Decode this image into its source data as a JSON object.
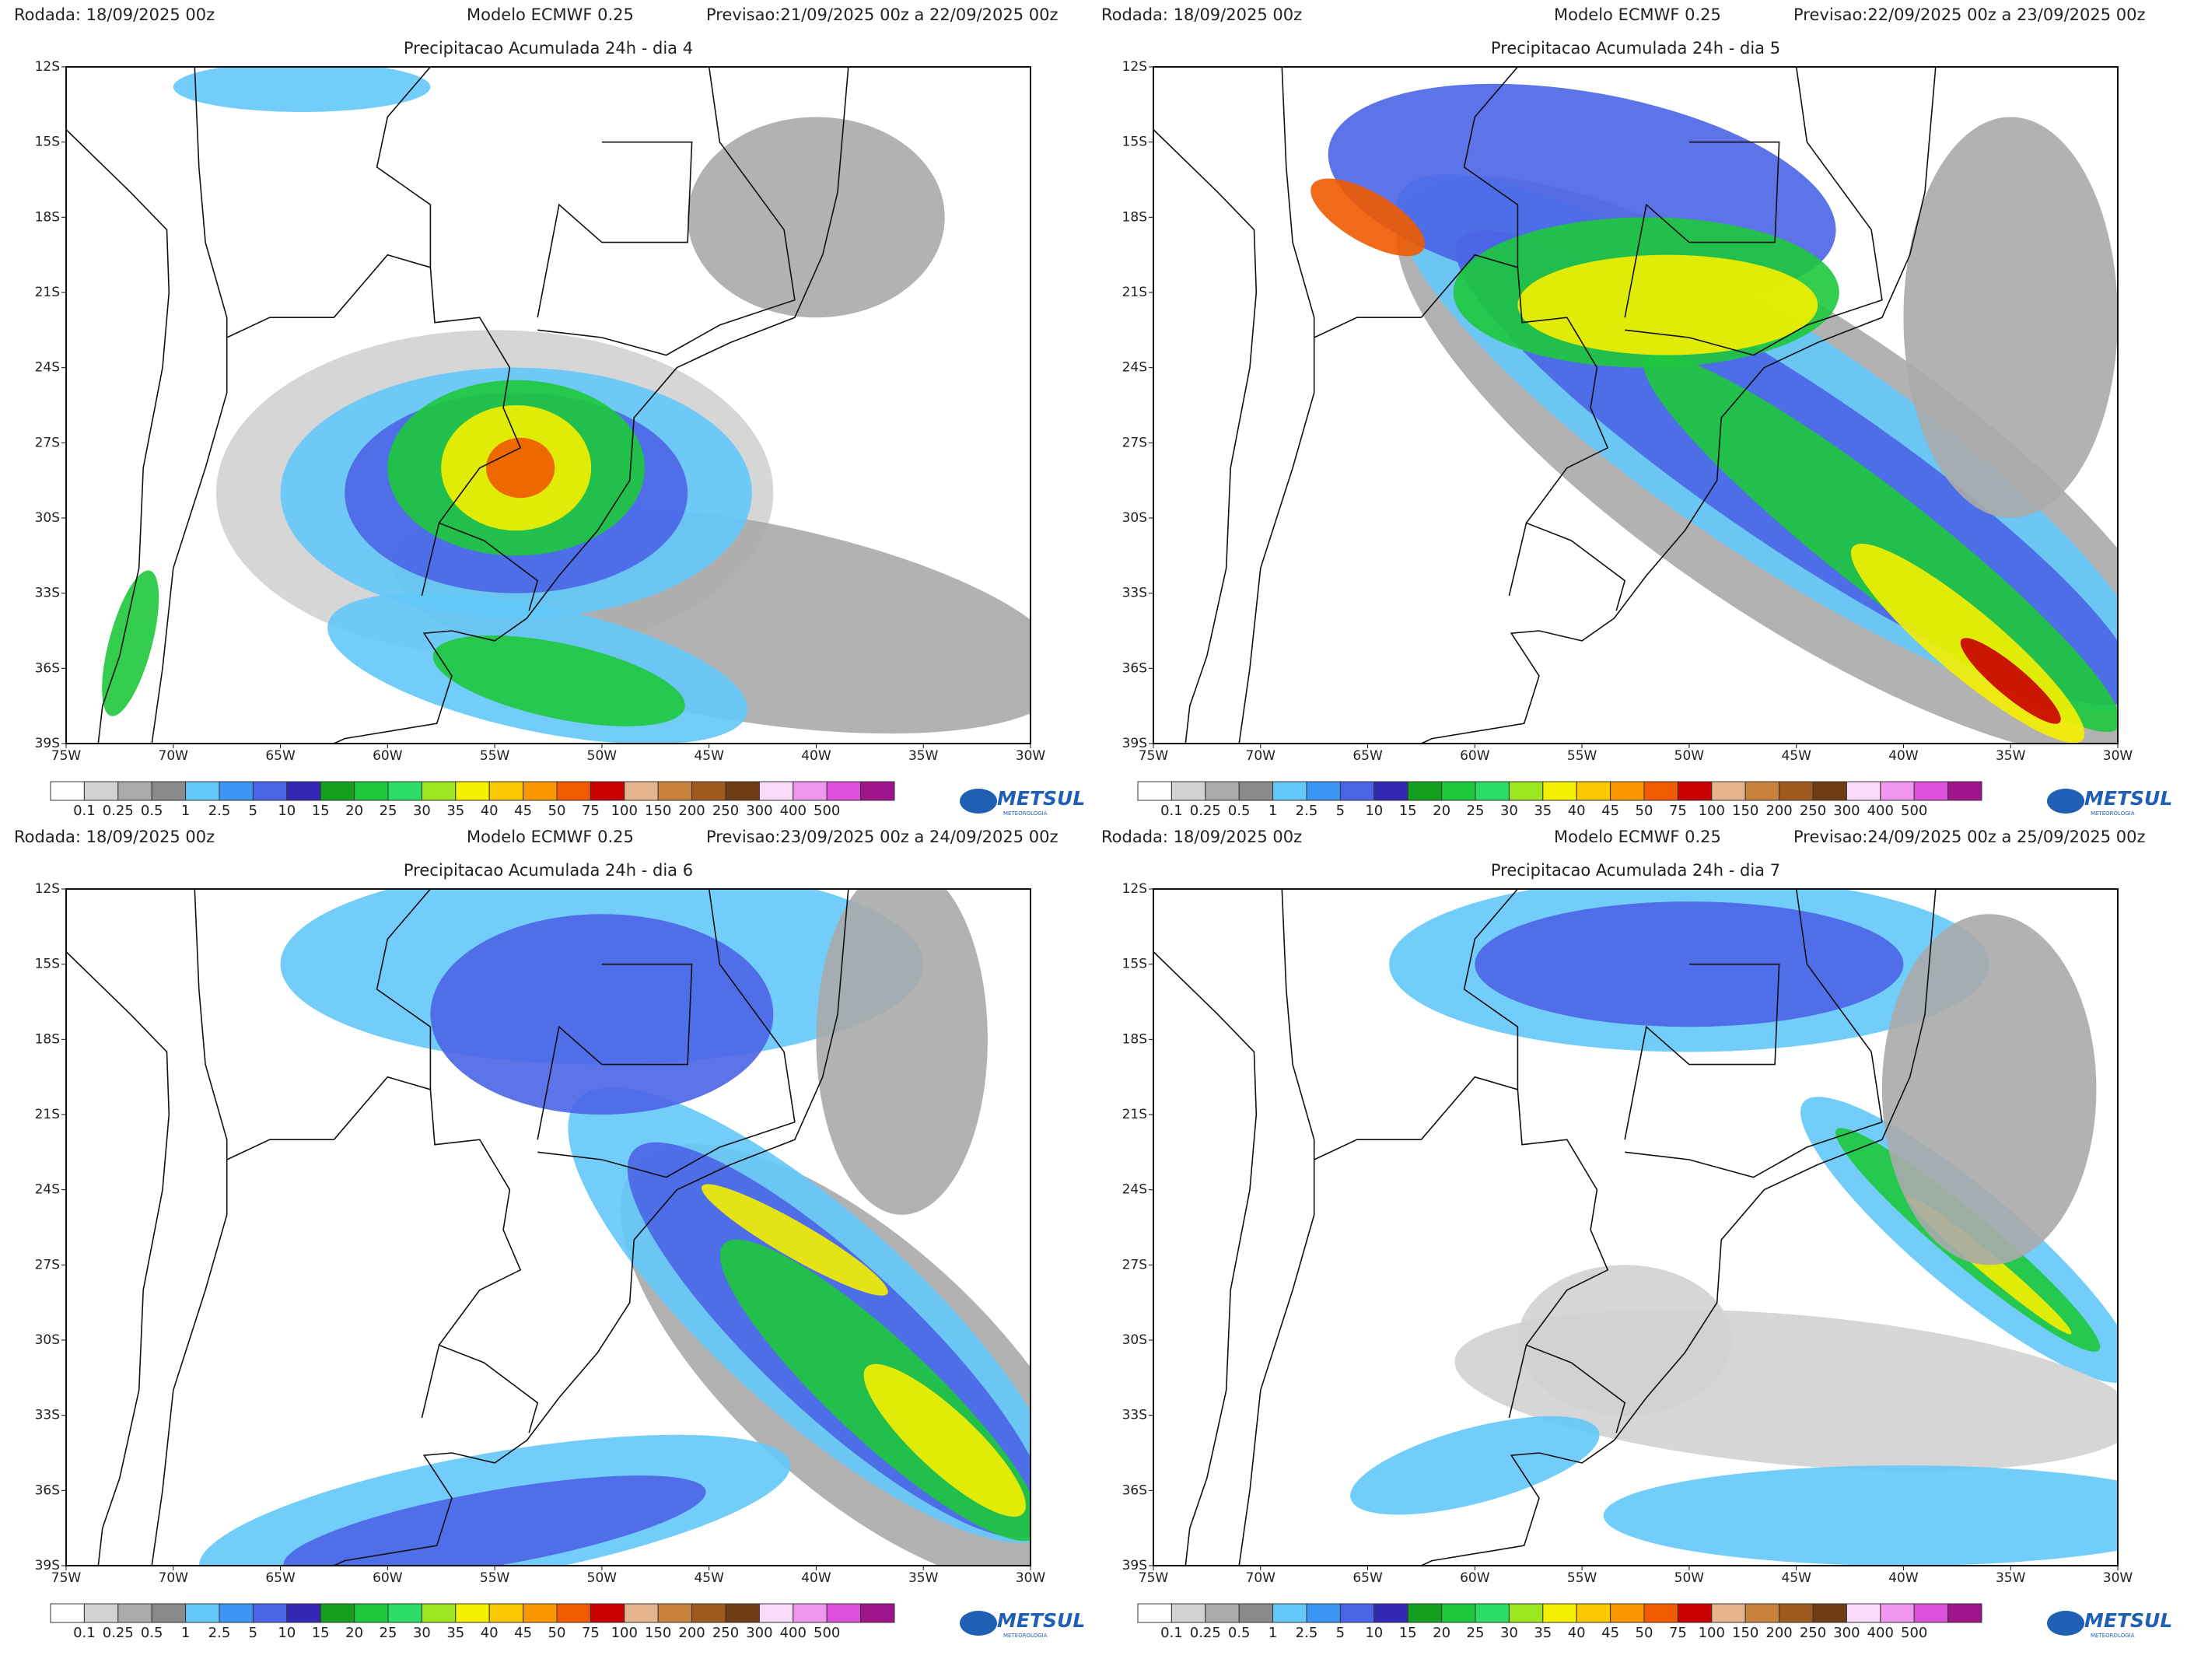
{
  "panels": [
    {
      "rodada": "Rodada: 18/09/2025 00z",
      "modelo": "Modelo ECMWF 0.25",
      "previsao": "Previsao:21/09/2025 00z a 22/09/2025 00z",
      "title": "Precipitacao Acumulada 24h - dia 4"
    },
    {
      "rodada": "Rodada: 18/09/2025 00z",
      "modelo": "Modelo ECMWF 0.25",
      "previsao": "Previsao:22/09/2025 00z a 23/09/2025 00z",
      "title": "Precipitacao Acumulada 24h - dia 5"
    },
    {
      "rodada": "Rodada: 18/09/2025 00z",
      "modelo": "Modelo ECMWF 0.25",
      "previsao": "Previsao:23/09/2025 00z a 24/09/2025 00z",
      "title": "Precipitacao Acumulada 24h - dia 6"
    },
    {
      "rodada": "Rodada: 18/09/2025 00z",
      "modelo": "Modelo ECMWF 0.25",
      "previsao": "Previsao:24/09/2025 00z a 25/09/2025 00z",
      "title": "Precipitacao Acumulada 24h - dia 7"
    }
  ],
  "lat_labels": [
    "12S",
    "15S",
    "18S",
    "21S",
    "24S",
    "27S",
    "30S",
    "33S",
    "36S",
    "39S"
  ],
  "lon_labels": [
    "75W",
    "70W",
    "65W",
    "60W",
    "55W",
    "50W",
    "45W",
    "40W",
    "35W",
    "30W"
  ],
  "colorbar": {
    "labels": [
      "0.1",
      "0.25",
      "0.5",
      "1",
      "2.5",
      "5",
      "10",
      "15",
      "20",
      "25",
      "30",
      "35",
      "40",
      "45",
      "50",
      "75",
      "100",
      "150",
      "200",
      "250",
      "300",
      "400",
      "500"
    ],
    "colors": [
      "#ffffff",
      "#d2d2d2",
      "#aaaaaa",
      "#8a8a8a",
      "#64c8fa",
      "#3c96f5",
      "#4b64e6",
      "#3228b4",
      "#14a01e",
      "#1ec83c",
      "#2ddc64",
      "#9be61e",
      "#f5f000",
      "#fac800",
      "#fa9600",
      "#f05a00",
      "#c80000",
      "#e6b48c",
      "#c8823c",
      "#a05a1e",
      "#6e3c14",
      "#fadcfa",
      "#f096f0",
      "#dc50dc",
      "#a0148c"
    ]
  },
  "logo": {
    "name": "METSUL",
    "tagline": "METEOROLOGIA"
  }
}
